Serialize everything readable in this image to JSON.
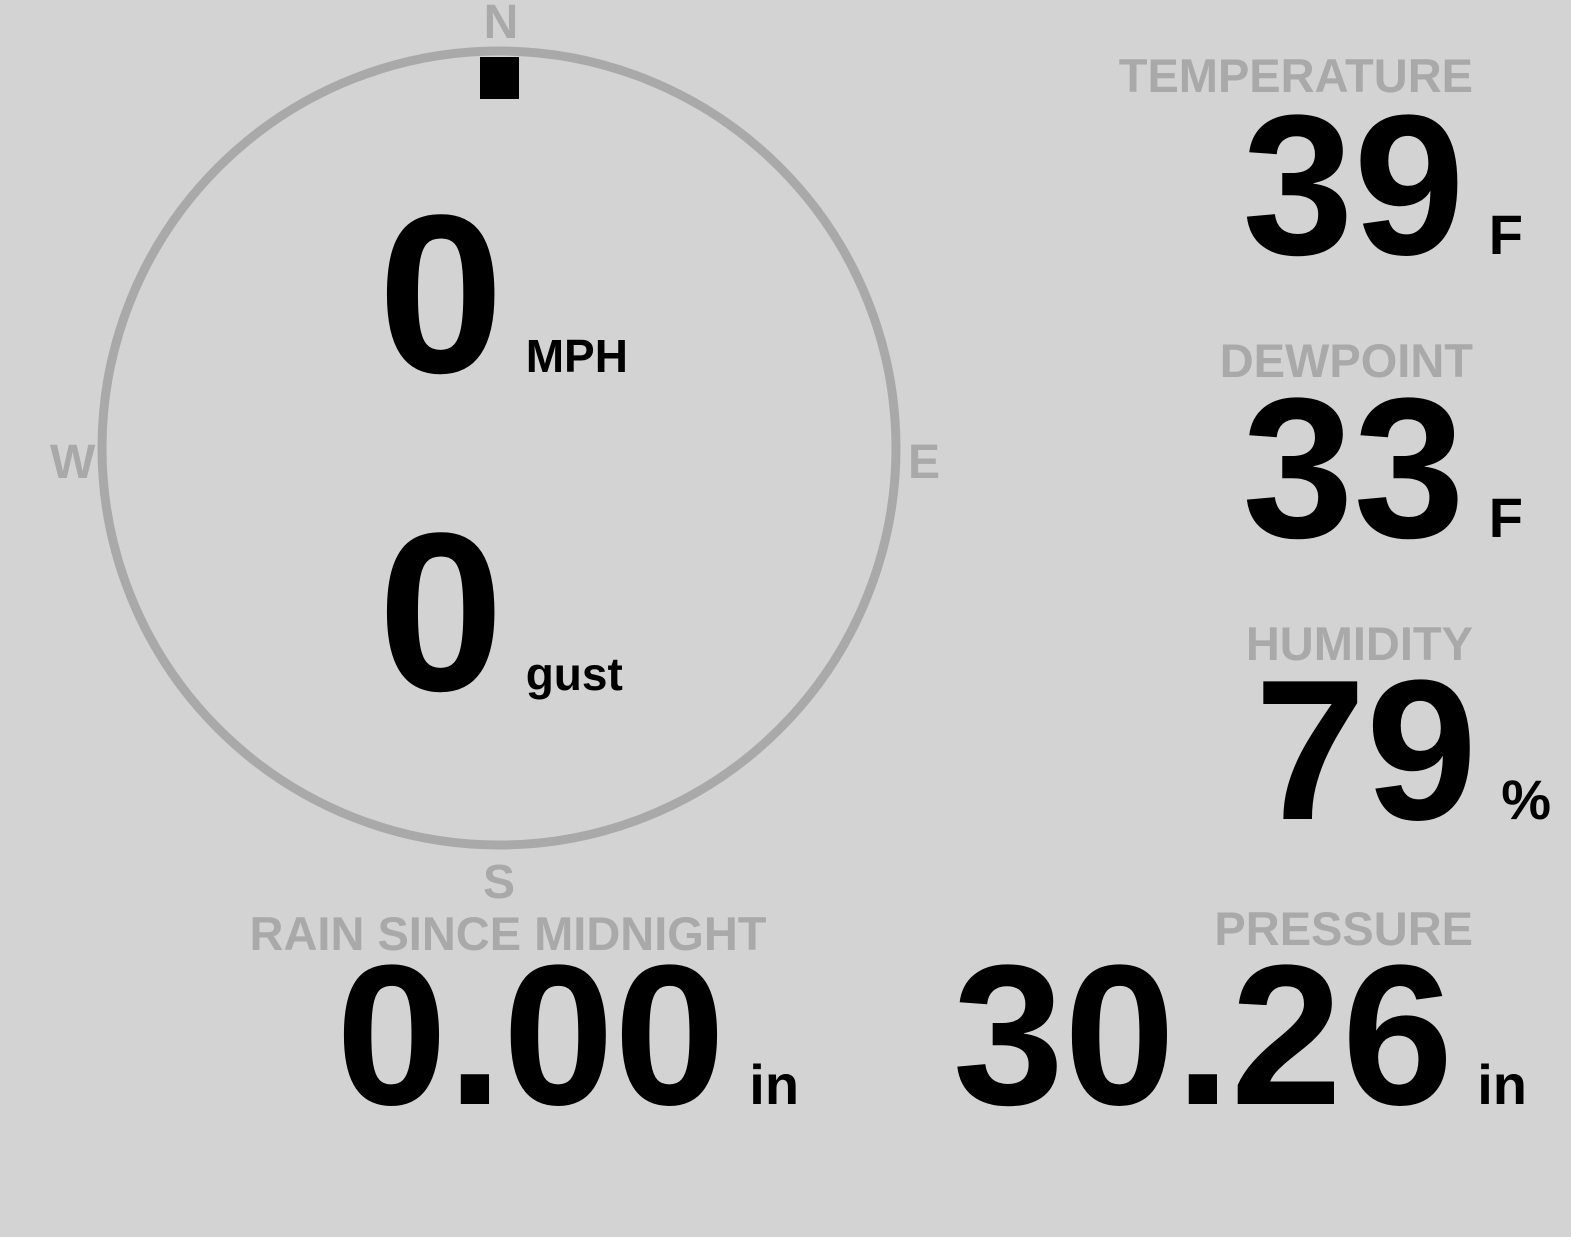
{
  "colors": {
    "background": "#d3d3d3",
    "label": "#a9a9a9",
    "value": "#000000",
    "compass_ring": "#a9a9a9",
    "direction_marker": "#000000"
  },
  "compass": {
    "north": "N",
    "south": "S",
    "east": "E",
    "west": "W",
    "wind_direction_deg": 0
  },
  "wind": {
    "speed": "0",
    "speed_unit": "MPH",
    "gust": "0",
    "gust_unit": "gust"
  },
  "temperature": {
    "label": "TEMPERATURE",
    "value": "39",
    "unit": "F"
  },
  "dewpoint": {
    "label": "DEWPOINT",
    "value": "33",
    "unit": "F"
  },
  "humidity": {
    "label": "HUMIDITY",
    "value": "79",
    "unit": "%"
  },
  "pressure": {
    "label": "PRESSURE",
    "value": "30.26",
    "unit": "in"
  },
  "rain": {
    "label": "RAIN SINCE MIDNIGHT",
    "value": "0.00",
    "unit": "in"
  }
}
